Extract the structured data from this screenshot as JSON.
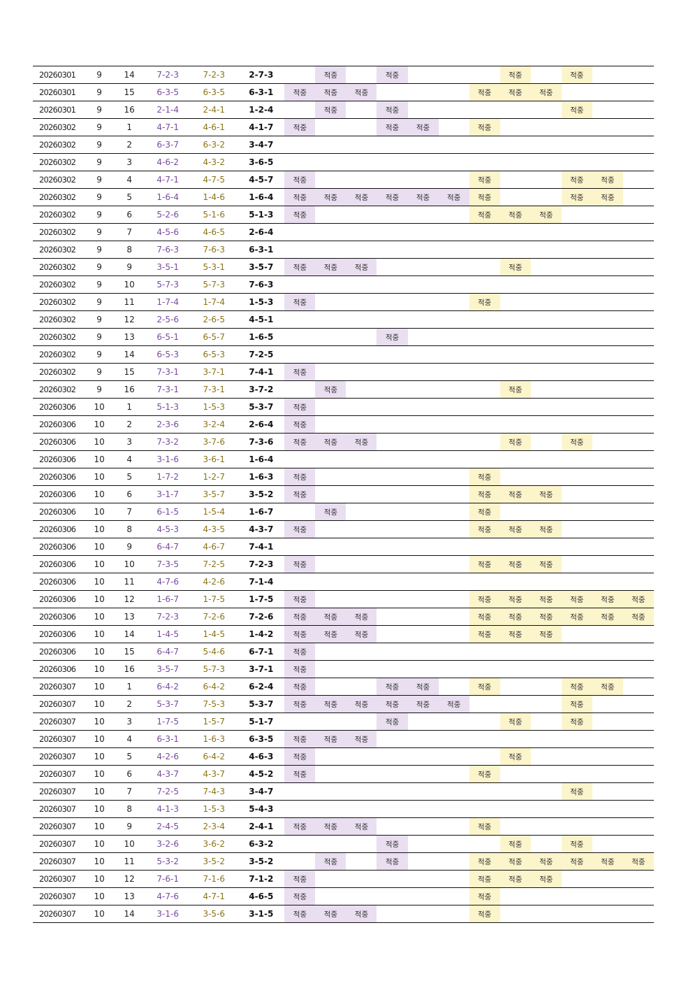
{
  "hit_label": "적중",
  "colors": {
    "purple_cell": "#e9dff0",
    "yellow_cell": "#fcf5cc",
    "col4_text": "#7a4a9e",
    "col5_text": "#8a7415"
  },
  "rows": [
    [
      "20260301",
      "9",
      "14",
      "7-2-3",
      "7-2-3",
      "2-7-3",
      "010100010100"
    ],
    [
      "20260301",
      "9",
      "15",
      "6-3-5",
      "6-3-5",
      "6-3-1",
      "111000111000"
    ],
    [
      "20260301",
      "9",
      "16",
      "2-1-4",
      "2-4-1",
      "1-2-4",
      "010100000100"
    ],
    [
      "20260302",
      "9",
      "1",
      "4-7-1",
      "4-6-1",
      "4-1-7",
      "100110100000"
    ],
    [
      "20260302",
      "9",
      "2",
      "6-3-7",
      "6-3-2",
      "3-4-7",
      "000000000000"
    ],
    [
      "20260302",
      "9",
      "3",
      "4-6-2",
      "4-3-2",
      "3-6-5",
      "000000000000"
    ],
    [
      "20260302",
      "9",
      "4",
      "4-7-1",
      "4-7-5",
      "4-5-7",
      "100000100110"
    ],
    [
      "20260302",
      "9",
      "5",
      "1-6-4",
      "1-4-6",
      "1-6-4",
      "111111100110"
    ],
    [
      "20260302",
      "9",
      "6",
      "5-2-6",
      "5-1-6",
      "5-1-3",
      "100000111000"
    ],
    [
      "20260302",
      "9",
      "7",
      "4-5-6",
      "4-6-5",
      "2-6-4",
      "000000000000"
    ],
    [
      "20260302",
      "9",
      "8",
      "7-6-3",
      "7-6-3",
      "6-3-1",
      "000000000000"
    ],
    [
      "20260302",
      "9",
      "9",
      "3-5-1",
      "5-3-1",
      "3-5-7",
      "111000010000"
    ],
    [
      "20260302",
      "9",
      "10",
      "5-7-3",
      "5-7-3",
      "7-6-3",
      "000000000000"
    ],
    [
      "20260302",
      "9",
      "11",
      "1-7-4",
      "1-7-4",
      "1-5-3",
      "100000100000"
    ],
    [
      "20260302",
      "9",
      "12",
      "2-5-6",
      "2-6-5",
      "4-5-1",
      "000000000000"
    ],
    [
      "20260302",
      "9",
      "13",
      "6-5-1",
      "6-5-7",
      "1-6-5",
      "000100000000"
    ],
    [
      "20260302",
      "9",
      "14",
      "6-5-3",
      "6-5-3",
      "7-2-5",
      "000000000000"
    ],
    [
      "20260302",
      "9",
      "15",
      "7-3-1",
      "3-7-1",
      "7-4-1",
      "100000000000"
    ],
    [
      "20260302",
      "9",
      "16",
      "7-3-1",
      "7-3-1",
      "3-7-2",
      "010000010000"
    ],
    [
      "20260306",
      "10",
      "1",
      "5-1-3",
      "1-5-3",
      "5-3-7",
      "100000000000"
    ],
    [
      "20260306",
      "10",
      "2",
      "2-3-6",
      "3-2-4",
      "2-6-4",
      "100000000000"
    ],
    [
      "20260306",
      "10",
      "3",
      "7-3-2",
      "3-7-6",
      "7-3-6",
      "111000010100"
    ],
    [
      "20260306",
      "10",
      "4",
      "3-1-6",
      "3-6-1",
      "1-6-4",
      "000000000000"
    ],
    [
      "20260306",
      "10",
      "5",
      "1-7-2",
      "1-2-7",
      "1-6-3",
      "100000100000"
    ],
    [
      "20260306",
      "10",
      "6",
      "3-1-7",
      "3-5-7",
      "3-5-2",
      "100000111000"
    ],
    [
      "20260306",
      "10",
      "7",
      "6-1-5",
      "1-5-4",
      "1-6-7",
      "010000100000"
    ],
    [
      "20260306",
      "10",
      "8",
      "4-5-3",
      "4-3-5",
      "4-3-7",
      "100000111000"
    ],
    [
      "20260306",
      "10",
      "9",
      "6-4-7",
      "4-6-7",
      "7-4-1",
      "000000000000"
    ],
    [
      "20260306",
      "10",
      "10",
      "7-3-5",
      "7-2-5",
      "7-2-3",
      "100000111000"
    ],
    [
      "20260306",
      "10",
      "11",
      "4-7-6",
      "4-2-6",
      "7-1-4",
      "000000000000"
    ],
    [
      "20260306",
      "10",
      "12",
      "1-6-7",
      "1-7-5",
      "1-7-5",
      "100000111111"
    ],
    [
      "20260306",
      "10",
      "13",
      "7-2-3",
      "7-2-6",
      "7-2-6",
      "111000111111"
    ],
    [
      "20260306",
      "10",
      "14",
      "1-4-5",
      "1-4-5",
      "1-4-2",
      "111000111000"
    ],
    [
      "20260306",
      "10",
      "15",
      "6-4-7",
      "5-4-6",
      "6-7-1",
      "100000000000"
    ],
    [
      "20260306",
      "10",
      "16",
      "3-5-7",
      "5-7-3",
      "3-7-1",
      "100000000000"
    ],
    [
      "20260307",
      "10",
      "1",
      "6-4-2",
      "6-4-2",
      "6-2-4",
      "100110100110"
    ],
    [
      "20260307",
      "10",
      "2",
      "5-3-7",
      "7-5-3",
      "5-3-7",
      "111111000100"
    ],
    [
      "20260307",
      "10",
      "3",
      "1-7-5",
      "1-5-7",
      "5-1-7",
      "000100010100"
    ],
    [
      "20260307",
      "10",
      "4",
      "6-3-1",
      "1-6-3",
      "6-3-5",
      "111000000000"
    ],
    [
      "20260307",
      "10",
      "5",
      "4-2-6",
      "6-4-2",
      "4-6-3",
      "100000010000"
    ],
    [
      "20260307",
      "10",
      "6",
      "4-3-7",
      "4-3-7",
      "4-5-2",
      "100000100000"
    ],
    [
      "20260307",
      "10",
      "7",
      "7-2-5",
      "7-4-3",
      "3-4-7",
      "000000000100"
    ],
    [
      "20260307",
      "10",
      "8",
      "4-1-3",
      "1-5-3",
      "5-4-3",
      "000000000000"
    ],
    [
      "20260307",
      "10",
      "9",
      "2-4-5",
      "2-3-4",
      "2-4-1",
      "111000100000"
    ],
    [
      "20260307",
      "10",
      "10",
      "3-2-6",
      "3-6-2",
      "6-3-2",
      "000100010100"
    ],
    [
      "20260307",
      "10",
      "11",
      "5-3-2",
      "3-5-2",
      "3-5-2",
      "010100111111"
    ],
    [
      "20260307",
      "10",
      "12",
      "7-6-1",
      "7-1-6",
      "7-1-2",
      "100000111000"
    ],
    [
      "20260307",
      "10",
      "13",
      "4-7-6",
      "4-7-1",
      "4-6-5",
      "100000100000"
    ],
    [
      "20260307",
      "10",
      "14",
      "3-1-6",
      "3-5-6",
      "3-1-5",
      "111000100000"
    ]
  ]
}
